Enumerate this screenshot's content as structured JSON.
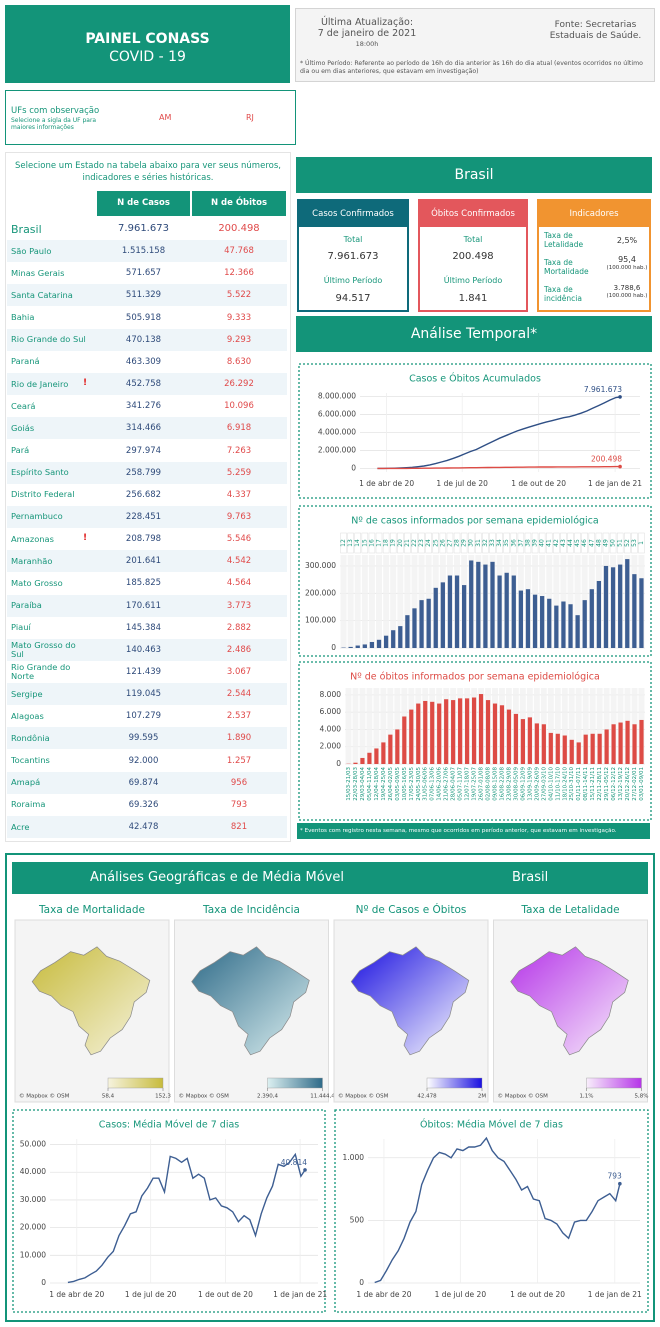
{
  "header": {
    "title": "PAINEL CONASS",
    "subtitle": "COVID - 19",
    "update_label": "Última Atualização:",
    "update_date": "7 de janeiro de 2021",
    "update_time": "18:00h",
    "source": "Fonte: Secretarias Estaduais de Saúde.",
    "note": "* Último Período: Referente ao período de 16h do dia anterior às 16h do dia atual (eventos ocorridos no último dia ou em dias anteriores, que estavam em investigação)"
  },
  "uf_observation": {
    "title": "UFs com observação",
    "hint": "Selecione a sigla da UF para maiores informações",
    "ufs": [
      "AM",
      "RJ"
    ]
  },
  "instruction": "Selecione um Estado na tabela abaixo para ver seus números, indicadores e séries históricas.",
  "table": {
    "columns": [
      "N de Casos",
      "N de Óbitos"
    ],
    "rows": [
      {
        "name": "Brasil",
        "cases": "7.961.673",
        "deaths": "200.498"
      },
      {
        "name": "São Paulo",
        "cases": "1.515.158",
        "deaths": "47.768"
      },
      {
        "name": "Minas Gerais",
        "cases": "571.657",
        "deaths": "12.366"
      },
      {
        "name": "Santa Catarina",
        "cases": "511.329",
        "deaths": "5.522"
      },
      {
        "name": "Bahia",
        "cases": "505.918",
        "deaths": "9.333"
      },
      {
        "name": "Rio Grande do Sul",
        "cases": "470.138",
        "deaths": "9.293"
      },
      {
        "name": "Paraná",
        "cases": "463.309",
        "deaths": "8.630"
      },
      {
        "name": "Rio de Janeiro",
        "flag": "!",
        "cases": "452.758",
        "deaths": "26.292"
      },
      {
        "name": "Ceará",
        "cases": "341.276",
        "deaths": "10.096"
      },
      {
        "name": "Goiás",
        "cases": "314.466",
        "deaths": "6.918"
      },
      {
        "name": "Pará",
        "cases": "297.974",
        "deaths": "7.263"
      },
      {
        "name": "Espírito Santo",
        "cases": "258.799",
        "deaths": "5.259"
      },
      {
        "name": "Distrito Federal",
        "cases": "256.682",
        "deaths": "4.337"
      },
      {
        "name": "Pernambuco",
        "cases": "228.451",
        "deaths": "9.763"
      },
      {
        "name": "Amazonas",
        "flag": "!",
        "cases": "208.798",
        "deaths": "5.546"
      },
      {
        "name": "Maranhão",
        "cases": "201.641",
        "deaths": "4.542"
      },
      {
        "name": "Mato Grosso",
        "cases": "185.825",
        "deaths": "4.564"
      },
      {
        "name": "Paraíba",
        "cases": "170.611",
        "deaths": "3.773"
      },
      {
        "name": "Piauí",
        "cases": "145.384",
        "deaths": "2.882"
      },
      {
        "name": "Mato Grosso do Sul",
        "cases": "140.463",
        "deaths": "2.486"
      },
      {
        "name": "Rio Grande do Norte",
        "cases": "121.439",
        "deaths": "3.067"
      },
      {
        "name": "Sergipe",
        "cases": "119.045",
        "deaths": "2.544"
      },
      {
        "name": "Alagoas",
        "cases": "107.279",
        "deaths": "2.537"
      },
      {
        "name": "Rondônia",
        "cases": "99.595",
        "deaths": "1.890"
      },
      {
        "name": "Tocantins",
        "cases": "92.000",
        "deaths": "1.257"
      },
      {
        "name": "Amapá",
        "cases": "69.874",
        "deaths": "956"
      },
      {
        "name": "Roraima",
        "cases": "69.326",
        "deaths": "793"
      },
      {
        "name": "Acre",
        "cases": "42.478",
        "deaths": "821"
      }
    ]
  },
  "brasil": {
    "title": "Brasil",
    "cases_card": {
      "title": "Casos Confirmados",
      "total_label": "Total",
      "total": "7.961.673",
      "period_label": "Último Período",
      "period": "94.517"
    },
    "deaths_card": {
      "title": "Óbitos Confirmados",
      "total_label": "Total",
      "total": "200.498",
      "period_label": "Último Período",
      "period": "1.841"
    },
    "indicators": {
      "title": "Indicadores",
      "items": [
        {
          "label": "Taxa de Letalidade",
          "value": "2,5%"
        },
        {
          "label": "Taxa de Mortalidade",
          "value": "95,4",
          "unit": "(100.000 hab.)"
        },
        {
          "label": "Taxa de incidência",
          "value": "3.788,6",
          "unit": "(100.000 hab.)"
        }
      ]
    }
  },
  "temporal": {
    "title": "Análise Temporal*",
    "footnote": "* Eventos com registro nesta semana, mesmo que ocorridos em período anterior, que estavam em investigação."
  },
  "chart_data": [
    {
      "type": "line",
      "title": "Casos e Óbitos Acumulados",
      "title_color": "#17967a",
      "grid": true,
      "x": [
        "2020-03-21",
        "2020-03-28",
        "2020-04-04",
        "2020-04-11",
        "2020-04-18",
        "2020-04-25",
        "2020-05-02",
        "2020-05-09",
        "2020-05-16",
        "2020-05-23",
        "2020-05-30",
        "2020-06-06",
        "2020-06-13",
        "2020-06-20",
        "2020-06-27",
        "2020-07-04",
        "2020-07-11",
        "2020-07-18",
        "2020-07-25",
        "2020-08-01",
        "2020-08-08",
        "2020-08-15",
        "2020-08-22",
        "2020-08-29",
        "2020-09-05",
        "2020-09-12",
        "2020-09-19",
        "2020-09-26",
        "2020-10-03",
        "2020-10-10",
        "2020-10-17",
        "2020-10-24",
        "2020-10-31",
        "2020-11-07",
        "2020-11-14",
        "2020-11-21",
        "2020-11-28",
        "2020-12-05",
        "2020-12-12",
        "2020-12-19",
        "2020-12-26",
        "2021-01-02",
        "2021-01-07"
      ],
      "xlim": [
        "2020-02-29",
        "2021-01-31"
      ],
      "xticks": [
        {
          "value": "2020-04-01",
          "label": "1 de abr de 20"
        },
        {
          "value": "2020-07-01",
          "label": "1 de jul de 20"
        },
        {
          "value": "2020-10-01",
          "label": "1 de out de 20"
        },
        {
          "value": "2021-01-01",
          "label": "1 de jan de 21"
        }
      ],
      "ylim": [
        -400000,
        8400000
      ],
      "yticks": [
        0,
        {
          "value": 2000000,
          "label": "2.000.000"
        },
        {
          "value": 4000000,
          "label": "4.000.000"
        },
        {
          "value": 6000000,
          "label": "6.000.000"
        },
        {
          "value": 8000000,
          "label": "8.000.000"
        }
      ],
      "series": [
        {
          "name": "Casos",
          "color": "#2f4f85",
          "end_label": "7.961.673",
          "values": [
            1500,
            5500,
            14500,
            27500,
            49500,
            79500,
            124500,
            189500,
            269500,
            389500,
            534500,
            709500,
            889500,
            1109500,
            1349500,
            1614500,
            1879500,
            2109500,
            2429500,
            2744500,
            3049500,
            3364500,
            3629500,
            3904500,
            4169500,
            4379500,
            4594500,
            4789500,
            4979500,
            5159500,
            5314500,
            5484500,
            5644500,
            5764500,
            5939500,
            6154500,
            6399500,
            6699500,
            6994500,
            7299500,
            7624500,
            7894500,
            7961673
          ]
        },
        {
          "name": "Óbitos",
          "color": "#dd4b45",
          "end_label": "200.498",
          "values": [
            30,
            180,
            880,
            2180,
            3980,
            6480,
            9880,
            13880,
            19380,
            25680,
            32680,
            39980,
            47180,
            54180,
            61680,
            69080,
            76680,
            84280,
            91980,
            100080,
            107480,
            114480,
            121280,
            127580,
            133380,
            138580,
            143980,
            148680,
            153280,
            156880,
            160380,
            163680,
            166480,
            168980,
            172380,
            175880,
            179380,
            181000,
            184500,
            189000,
            193500,
            197500,
            200498
          ]
        }
      ]
    },
    {
      "type": "bar",
      "title": "Nº de casos informados por semana epidemiológica",
      "title_color": "#17967a",
      "grid": true,
      "color": "#3d5e92",
      "label_position": "top",
      "categories": [
        "12",
        "13",
        "14",
        "15",
        "16",
        "17",
        "18",
        "19",
        "20",
        "21",
        "22",
        "23",
        "24",
        "25",
        "26",
        "27",
        "28",
        "29",
        "30",
        "31",
        "32",
        "33",
        "34",
        "35",
        "36",
        "37",
        "38",
        "39",
        "40",
        "41",
        "42",
        "43",
        "44",
        "45",
        "46",
        "47",
        "48",
        "49",
        "50",
        "51",
        "52",
        "53",
        "1"
      ],
      "values": [
        1500,
        4000,
        9000,
        13000,
        22000,
        30000,
        45000,
        65000,
        80000,
        120000,
        145000,
        175000,
        180000,
        220000,
        240000,
        265000,
        265000,
        230000,
        320000,
        315000,
        305000,
        315000,
        265000,
        275000,
        265000,
        210000,
        215000,
        195000,
        190000,
        180000,
        155000,
        170000,
        160000,
        120000,
        175000,
        215000,
        245000,
        300000,
        295000,
        305000,
        325000,
        270000,
        255000
      ],
      "ylim": [
        0,
        340000
      ],
      "yticks": [
        0,
        {
          "value": 100000,
          "label": "100.000"
        },
        {
          "value": 200000,
          "label": "200.000"
        },
        {
          "value": 300000,
          "label": "300.000"
        }
      ]
    },
    {
      "type": "bar",
      "title": "Nº de óbitos informados por semana epidemiológica",
      "title_color": "#dd4b45",
      "grid": true,
      "color": "#dd4b45",
      "label_position": "bottom",
      "categories": [
        "15/03-21/03",
        "22/03-28/03",
        "29/03-04/04",
        "05/04-11/04",
        "12/04-18/04",
        "19/04-25/04",
        "26/04-02/05",
        "03/05-09/05",
        "10/05-16/05",
        "17/05-23/05",
        "24/05-30/05",
        "31/05-06/06",
        "07/06-13/06",
        "14/06-20/06",
        "21/06-27/06",
        "28/06-04/07",
        "05/07-11/07",
        "12/07-18/07",
        "19/07-25/07",
        "26/07-01/08",
        "02/08-08/08",
        "09/08-15/08",
        "16/08-22/08",
        "23/08-29/08",
        "30/08-05/09",
        "06/09-12/09",
        "13/09-19/09",
        "20/09-26/09",
        "27/09-03/10",
        "04/10-10/10",
        "11/10-17/10",
        "18/10-24/10",
        "25/10-31/10",
        "01/11-07/11",
        "08/11-14/11",
        "15/11-21/11",
        "22/11-28/11",
        "29/11-05/12",
        "06/12-12/12",
        "13/12-19/12",
        "20/12-26/12",
        "27/12-02/01",
        "03/01-09/01"
      ],
      "values": [
        30,
        150,
        700,
        1300,
        1800,
        2500,
        3400,
        4000,
        5500,
        6300,
        7000,
        7300,
        7200,
        7000,
        7500,
        7400,
        7600,
        7600,
        7700,
        8100,
        7400,
        7000,
        6800,
        6300,
        5800,
        5200,
        5400,
        4700,
        4600,
        3600,
        3500,
        3300,
        2800,
        2500,
        3400,
        3500,
        3500,
        4000,
        4600,
        4800,
        5000,
        4600,
        5100
      ],
      "ylim": [
        0,
        8800
      ],
      "yticks": [
        0,
        {
          "value": 2000,
          "label": "2.000"
        },
        {
          "value": 4000,
          "label": "4.000"
        },
        {
          "value": 6000,
          "label": "6.000"
        },
        {
          "value": 8000,
          "label": "8.000"
        }
      ]
    },
    {
      "type": "line",
      "title": "Casos: Média Móvel de 7 dias",
      "title_color": "#17967a",
      "grid": true,
      "x": [
        "2020-03-21",
        "2020-03-28",
        "2020-04-04",
        "2020-04-11",
        "2020-04-18",
        "2020-04-25",
        "2020-05-02",
        "2020-05-09",
        "2020-05-16",
        "2020-05-23",
        "2020-05-30",
        "2020-06-06",
        "2020-06-13",
        "2020-06-20",
        "2020-06-27",
        "2020-07-04",
        "2020-07-11",
        "2020-07-18",
        "2020-07-25",
        "2020-08-01",
        "2020-08-08",
        "2020-08-15",
        "2020-08-22",
        "2020-08-29",
        "2020-09-05",
        "2020-09-12",
        "2020-09-19",
        "2020-09-26",
        "2020-10-03",
        "2020-10-10",
        "2020-10-17",
        "2020-10-24",
        "2020-10-31",
        "2020-11-07",
        "2020-11-14",
        "2020-11-21",
        "2020-11-28",
        "2020-12-05",
        "2020-12-12",
        "2020-12-19",
        "2020-12-26",
        "2021-01-02",
        "2021-01-07"
      ],
      "xlim": [
        "2020-02-28",
        "2021-01-23"
      ],
      "xticks": [
        {
          "value": "2020-04-01",
          "label": "1 de abr de 20"
        },
        {
          "value": "2020-07-01",
          "label": "1 de jul de 20"
        },
        {
          "value": "2020-10-01",
          "label": "1 de out de 20"
        },
        {
          "value": "2021-01-01",
          "label": "1 de jan de 21"
        }
      ],
      "ylim": [
        0,
        52000
      ],
      "yticks": [
        0,
        {
          "value": 10000,
          "label": "10.000"
        },
        {
          "value": 20000,
          "label": "20.000"
        },
        {
          "value": 30000,
          "label": "30.000"
        },
        {
          "value": 40000,
          "label": "40.000"
        },
        {
          "value": 50000,
          "label": "50.000"
        }
      ],
      "series": [
        {
          "name": "Casos",
          "color": "#3d5e92",
          "end_label": "40.814",
          "values": [
            214,
            571,
            1286,
            1857,
            3143,
            4286,
            6429,
            9286,
            11429,
            17143,
            20714,
            25000,
            25714,
            31429,
            34286,
            37857,
            37857,
            32857,
            45714,
            45000,
            43571,
            45000,
            37857,
            39286,
            37857,
            30000,
            30714,
            27857,
            27143,
            25714,
            22143,
            24286,
            22857,
            17143,
            25000,
            30714,
            35000,
            42857,
            42143,
            43571,
            46429,
            38571,
            40814
          ]
        }
      ]
    },
    {
      "type": "line",
      "title": "Óbitos: Média Móvel de 7 dias",
      "title_color": "#17967a",
      "grid": true,
      "x": [
        "2020-03-21",
        "2020-03-28",
        "2020-04-04",
        "2020-04-11",
        "2020-04-18",
        "2020-04-25",
        "2020-05-02",
        "2020-05-09",
        "2020-05-16",
        "2020-05-23",
        "2020-05-30",
        "2020-06-06",
        "2020-06-13",
        "2020-06-20",
        "2020-06-27",
        "2020-07-04",
        "2020-07-11",
        "2020-07-18",
        "2020-07-25",
        "2020-08-01",
        "2020-08-08",
        "2020-08-15",
        "2020-08-22",
        "2020-08-29",
        "2020-09-05",
        "2020-09-12",
        "2020-09-19",
        "2020-09-26",
        "2020-10-03",
        "2020-10-10",
        "2020-10-17",
        "2020-10-24",
        "2020-10-31",
        "2020-11-07",
        "2020-11-14",
        "2020-11-21",
        "2020-11-28",
        "2020-12-05",
        "2020-12-12",
        "2020-12-19",
        "2020-12-26",
        "2021-01-02",
        "2021-01-07"
      ],
      "xlim": [
        "2020-03-13",
        "2021-01-31"
      ],
      "xticks": [
        {
          "value": "2020-04-01",
          "label": "1 de abr de 20"
        },
        {
          "value": "2020-07-01",
          "label": "1 de jul de 20"
        },
        {
          "value": "2020-10-01",
          "label": "1 de out de 20"
        },
        {
          "value": "2021-01-01",
          "label": "1 de jan de 21"
        }
      ],
      "ylim": [
        0,
        1150
      ],
      "yticks": [
        0,
        500,
        {
          "value": 1000,
          "label": "1.000"
        }
      ],
      "series": [
        {
          "name": "Óbitos",
          "color": "#3d5e92",
          "end_label": "793",
          "values": [
            4,
            21,
            100,
            186,
            257,
            357,
            486,
            571,
            786,
            900,
            1000,
            1043,
            1029,
            1000,
            1071,
            1057,
            1086,
            1086,
            1100,
            1157,
            1057,
            1000,
            971,
            900,
            829,
            743,
            771,
            671,
            657,
            514,
            500,
            471,
            400,
            357,
            486,
            500,
            500,
            571,
            657,
            686,
            714,
            657,
            793
          ]
        }
      ]
    }
  ],
  "geo": {
    "title": "Análises Geográficas e de Média Móvel",
    "region": "Brasil"
  },
  "maps": {
    "panels": [
      {
        "title": "Taxa de Mortalidade",
        "colors": [
          "#f6f3de",
          "#c7bb3c"
        ],
        "min": {
          "value": 58.4,
          "label": "58,4"
        },
        "max": {
          "value": 152.3,
          "label": "152,3"
        },
        "attribution": "© Mapbox © OSM"
      },
      {
        "title": "Taxa de Incidência",
        "colors": [
          "#dcf0f1",
          "#2e6a88"
        ],
        "min": {
          "value": 2390.4,
          "label": "2.390,4"
        },
        "max": {
          "value": 11444.4,
          "label": "11.444,4"
        },
        "attribution": "© Mapbox © OSM"
      },
      {
        "title": "Nº de Casos e Óbitos",
        "colors": [
          "#ffffff",
          "#1a10e0"
        ],
        "min": {
          "value": 42478,
          "label": "42.478"
        },
        "max": {
          "value": 2000000,
          "label": "2M"
        },
        "attribution": "© Mapbox © OSM"
      },
      {
        "title": "Taxa de Letalidade",
        "colors": [
          "#f8eefb",
          "#b534e8"
        ],
        "min": {
          "value": 1.1,
          "label": "1,1%"
        },
        "max": {
          "value": 5.8,
          "label": "5,8%"
        },
        "attribution": "© Mapbox © OSM"
      }
    ]
  }
}
